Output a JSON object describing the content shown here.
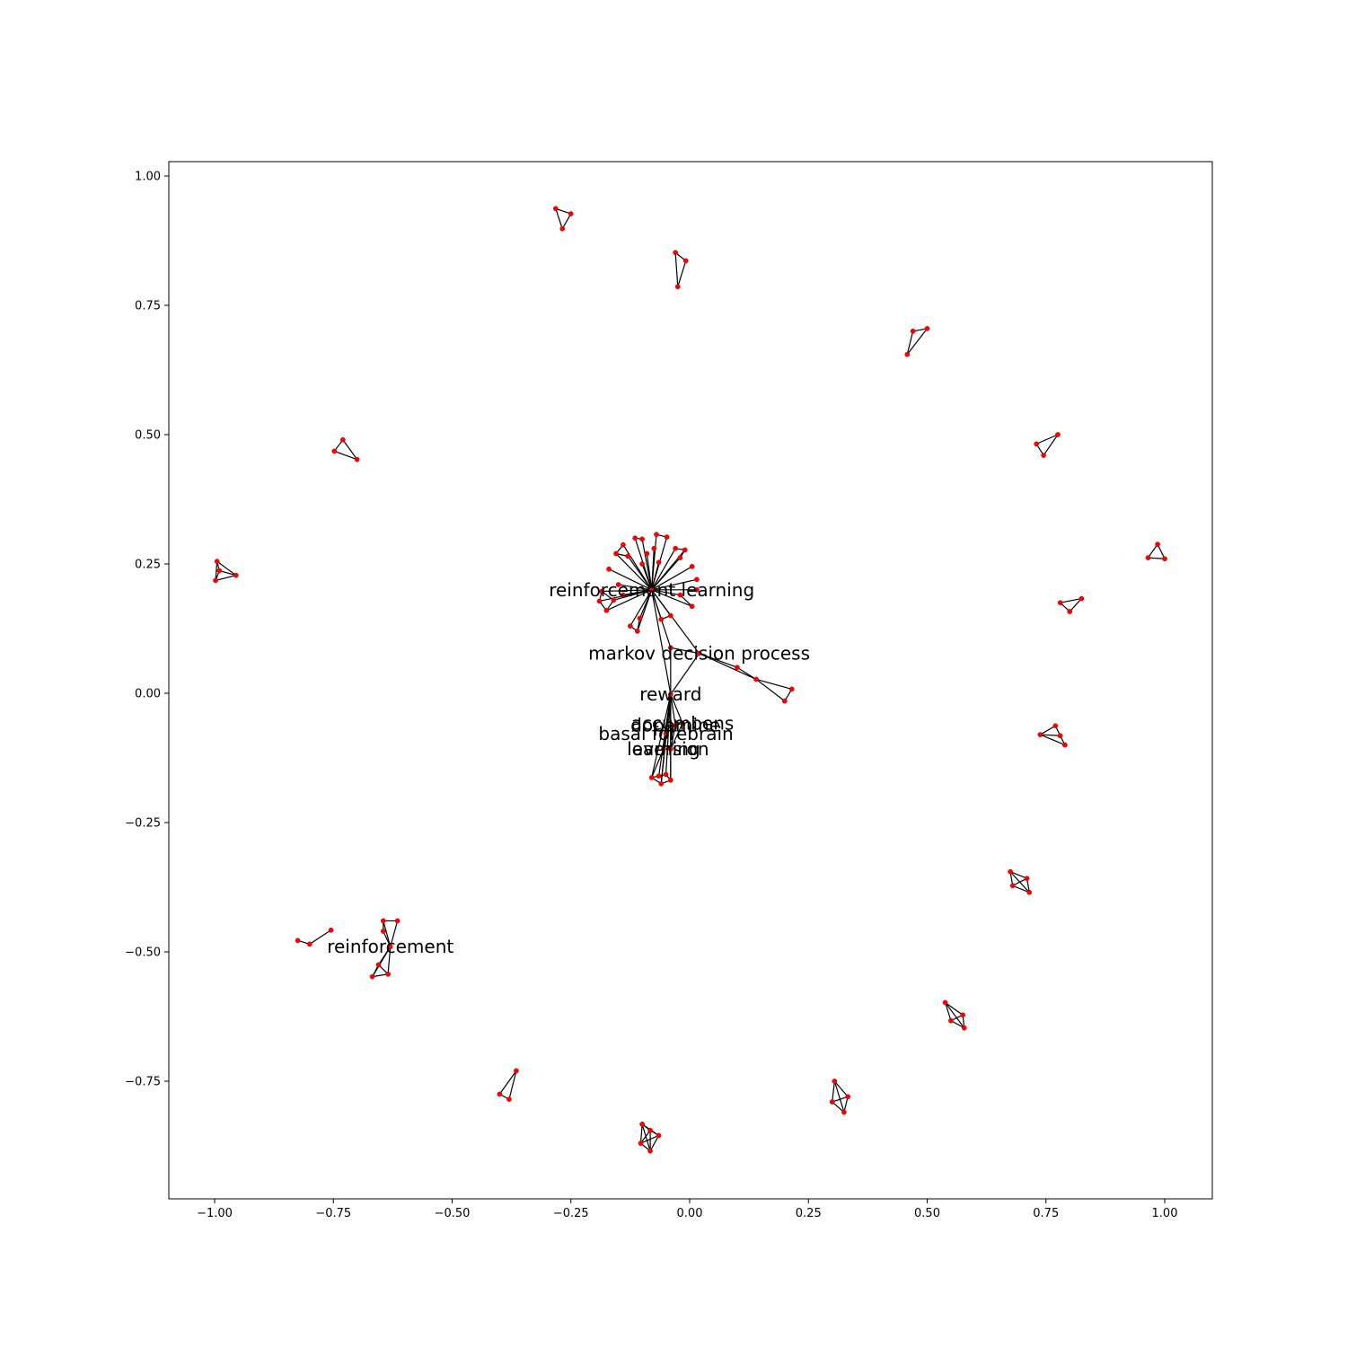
{
  "chart_data": {
    "type": "network",
    "title": "",
    "xlabel": "",
    "ylabel": "",
    "xlim": [
      -1.1,
      1.1
    ],
    "ylim": [
      -1.1,
      1.03
    ],
    "grid": false,
    "x_ticks": [
      "−1.00",
      "−0.75",
      "−0.50",
      "−0.25",
      "0.00",
      "0.25",
      "0.50",
      "0.75",
      "1.00"
    ],
    "x_tick_values": [
      -1.0,
      -0.75,
      -0.5,
      -0.25,
      0.0,
      0.25,
      0.5,
      0.75,
      1.0
    ],
    "y_ticks": [
      "1.00",
      "0.75",
      "0.50",
      "0.25",
      "0.00",
      "−0.25",
      "−0.50",
      "−0.75"
    ],
    "y_tick_values": [
      1.0,
      0.75,
      0.5,
      0.25,
      0.0,
      -0.25,
      -0.5,
      -0.75
    ],
    "node_color": "#ff0000",
    "edge_color": "#000000",
    "labels": [
      {
        "text": "reinforcement learning",
        "x": -0.08,
        "y": 0.2
      },
      {
        "text": "markov decision process",
        "x": 0.02,
        "y": 0.077
      },
      {
        "text": "reward",
        "x": -0.04,
        "y": -0.002
      },
      {
        "text": "accumbens",
        "x": -0.015,
        "y": -0.058
      },
      {
        "text": "dopamine",
        "x": -0.03,
        "y": -0.062
      },
      {
        "text": "basal forebrain",
        "x": -0.05,
        "y": -0.078
      },
      {
        "text": "learning",
        "x": -0.055,
        "y": -0.108
      },
      {
        "text": "aversion",
        "x": -0.04,
        "y": -0.108
      },
      {
        "text": "reinforcement",
        "x": -0.63,
        "y": -0.49
      }
    ],
    "nodes": [
      {
        "id": "rl",
        "x": -0.08,
        "y": 0.2
      },
      {
        "id": "rl1",
        "x": -0.115,
        "y": 0.3
      },
      {
        "id": "rl2",
        "x": -0.1,
        "y": 0.298
      },
      {
        "id": "rl3",
        "x": -0.07,
        "y": 0.307
      },
      {
        "id": "rl4",
        "x": -0.048,
        "y": 0.302
      },
      {
        "id": "rl5",
        "x": -0.075,
        "y": 0.28
      },
      {
        "id": "rl6",
        "x": -0.09,
        "y": 0.27
      },
      {
        "id": "rl7",
        "x": -0.03,
        "y": 0.28
      },
      {
        "id": "rl8",
        "x": -0.01,
        "y": 0.277
      },
      {
        "id": "rl9",
        "x": -0.02,
        "y": 0.262
      },
      {
        "id": "rl10",
        "x": -0.14,
        "y": 0.287
      },
      {
        "id": "rl11",
        "x": -0.155,
        "y": 0.27
      },
      {
        "id": "rl12",
        "x": -0.13,
        "y": 0.265
      },
      {
        "id": "rl13",
        "x": -0.1,
        "y": 0.25
      },
      {
        "id": "rl14",
        "x": -0.065,
        "y": 0.253
      },
      {
        "id": "rl15",
        "x": -0.17,
        "y": 0.24
      },
      {
        "id": "rl16",
        "x": 0.005,
        "y": 0.245
      },
      {
        "id": "rl17",
        "x": 0.015,
        "y": 0.22
      },
      {
        "id": "rl18",
        "x": -0.15,
        "y": 0.21
      },
      {
        "id": "rl19",
        "x": -0.185,
        "y": 0.197
      },
      {
        "id": "rl20",
        "x": -0.19,
        "y": 0.178
      },
      {
        "id": "rl21",
        "x": -0.175,
        "y": 0.16
      },
      {
        "id": "rl22",
        "x": -0.16,
        "y": 0.18
      },
      {
        "id": "rl23",
        "x": -0.14,
        "y": 0.19
      },
      {
        "id": "rl24",
        "x": -0.02,
        "y": 0.19
      },
      {
        "id": "rl25",
        "x": 0.005,
        "y": 0.168
      },
      {
        "id": "rl26",
        "x": 0.015,
        "y": 0.2
      },
      {
        "id": "rl27",
        "x": -0.125,
        "y": 0.13
      },
      {
        "id": "rl28",
        "x": -0.11,
        "y": 0.12
      },
      {
        "id": "rl29",
        "x": -0.105,
        "y": 0.145
      },
      {
        "id": "rl30",
        "x": -0.06,
        "y": 0.143
      },
      {
        "id": "rl31",
        "x": -0.04,
        "y": 0.15
      },
      {
        "id": "mdp",
        "x": 0.02,
        "y": 0.077
      },
      {
        "id": "m1",
        "x": -0.04,
        "y": 0.088
      },
      {
        "id": "m2",
        "x": 0.1,
        "y": 0.05
      },
      {
        "id": "m3",
        "x": 0.14,
        "y": 0.027
      },
      {
        "id": "m4",
        "x": 0.215,
        "y": 0.008
      },
      {
        "id": "m5",
        "x": 0.2,
        "y": -0.015
      },
      {
        "id": "rw",
        "x": -0.04,
        "y": -0.002
      },
      {
        "id": "ac",
        "x": -0.015,
        "y": -0.058
      },
      {
        "id": "dp",
        "x": -0.03,
        "y": -0.062
      },
      {
        "id": "bf",
        "x": -0.05,
        "y": -0.078
      },
      {
        "id": "ln",
        "x": -0.055,
        "y": -0.108
      },
      {
        "id": "av",
        "x": -0.04,
        "y": -0.108
      },
      {
        "id": "b1",
        "x": -0.08,
        "y": -0.163
      },
      {
        "id": "b2",
        "x": -0.06,
        "y": -0.175
      },
      {
        "id": "b3",
        "x": -0.04,
        "y": -0.168
      },
      {
        "id": "b4",
        "x": -0.065,
        "y": -0.16
      },
      {
        "id": "b5",
        "x": -0.05,
        "y": -0.157
      },
      {
        "id": "t1a",
        "x": -0.282,
        "y": 0.937
      },
      {
        "id": "t1b",
        "x": -0.25,
        "y": 0.927
      },
      {
        "id": "t1c",
        "x": -0.268,
        "y": 0.898
      },
      {
        "id": "t2a",
        "x": -0.03,
        "y": 0.852
      },
      {
        "id": "t2b",
        "x": -0.008,
        "y": 0.836
      },
      {
        "id": "t2c",
        "x": -0.025,
        "y": 0.786
      },
      {
        "id": "t3a",
        "x": 0.47,
        "y": 0.7
      },
      {
        "id": "t3b",
        "x": 0.5,
        "y": 0.705
      },
      {
        "id": "t3c",
        "x": 0.458,
        "y": 0.655
      },
      {
        "id": "t4a",
        "x": -0.73,
        "y": 0.49
      },
      {
        "id": "t4b",
        "x": -0.748,
        "y": 0.468
      },
      {
        "id": "t4c",
        "x": -0.7,
        "y": 0.452
      },
      {
        "id": "t5a",
        "x": -0.995,
        "y": 0.255
      },
      {
        "id": "t5b",
        "x": -0.99,
        "y": 0.237
      },
      {
        "id": "t5c",
        "x": -0.955,
        "y": 0.228
      },
      {
        "id": "t5d",
        "x": -0.998,
        "y": 0.218
      },
      {
        "id": "t6a",
        "x": 0.73,
        "y": 0.482
      },
      {
        "id": "t6b",
        "x": 0.775,
        "y": 0.5
      },
      {
        "id": "t6c",
        "x": 0.745,
        "y": 0.46
      },
      {
        "id": "t7a",
        "x": 0.965,
        "y": 0.262
      },
      {
        "id": "t7b",
        "x": 0.985,
        "y": 0.288
      },
      {
        "id": "t7c",
        "x": 1.0,
        "y": 0.26
      },
      {
        "id": "t8a",
        "x": 0.78,
        "y": 0.175
      },
      {
        "id": "t8b",
        "x": 0.825,
        "y": 0.183
      },
      {
        "id": "t8c",
        "x": 0.8,
        "y": 0.158
      },
      {
        "id": "t9a",
        "x": 0.738,
        "y": -0.08
      },
      {
        "id": "t9b",
        "x": 0.77,
        "y": -0.063
      },
      {
        "id": "t9c",
        "x": 0.78,
        "y": -0.082
      },
      {
        "id": "t9d",
        "x": 0.79,
        "y": -0.1
      },
      {
        "id": "q1a",
        "x": 0.675,
        "y": -0.345
      },
      {
        "id": "q1b",
        "x": 0.68,
        "y": -0.372
      },
      {
        "id": "q1c",
        "x": 0.71,
        "y": -0.358
      },
      {
        "id": "q1d",
        "x": 0.715,
        "y": -0.385
      },
      {
        "id": "q2a",
        "x": 0.538,
        "y": -0.598
      },
      {
        "id": "q2b",
        "x": 0.55,
        "y": -0.633
      },
      {
        "id": "q2c",
        "x": 0.575,
        "y": -0.622
      },
      {
        "id": "q2d",
        "x": 0.578,
        "y": -0.647
      },
      {
        "id": "q3a",
        "x": 0.305,
        "y": -0.75
      },
      {
        "id": "q3b",
        "x": 0.3,
        "y": -0.79
      },
      {
        "id": "q3c",
        "x": 0.333,
        "y": -0.78
      },
      {
        "id": "q3d",
        "x": 0.325,
        "y": -0.81
      },
      {
        "id": "q4a",
        "x": -0.1,
        "y": -0.833
      },
      {
        "id": "q4b",
        "x": -0.083,
        "y": -0.845
      },
      {
        "id": "q4c",
        "x": -0.065,
        "y": -0.855
      },
      {
        "id": "q4d",
        "x": -0.103,
        "y": -0.87
      },
      {
        "id": "q4e",
        "x": -0.083,
        "y": -0.885
      },
      {
        "id": "t10a",
        "x": -0.365,
        "y": -0.73
      },
      {
        "id": "t10b",
        "x": -0.4,
        "y": -0.775
      },
      {
        "id": "t10c",
        "x": -0.38,
        "y": -0.785
      },
      {
        "id": "r",
        "x": -0.63,
        "y": -0.49
      },
      {
        "id": "r1",
        "x": -0.645,
        "y": -0.44
      },
      {
        "id": "r2",
        "x": -0.615,
        "y": -0.44
      },
      {
        "id": "r3",
        "x": -0.645,
        "y": -0.46
      },
      {
        "id": "r4",
        "x": -0.655,
        "y": -0.525
      },
      {
        "id": "r5",
        "x": -0.668,
        "y": -0.548
      },
      {
        "id": "r6",
        "x": -0.635,
        "y": -0.543
      },
      {
        "id": "s1",
        "x": -0.825,
        "y": -0.478
      },
      {
        "id": "s2",
        "x": -0.8,
        "y": -0.485
      },
      {
        "id": "s3",
        "x": -0.755,
        "y": -0.458
      }
    ],
    "edges": [
      [
        "rl",
        "rl1"
      ],
      [
        "rl",
        "rl2"
      ],
      [
        "rl",
        "rl3"
      ],
      [
        "rl",
        "rl4"
      ],
      [
        "rl",
        "rl5"
      ],
      [
        "rl",
        "rl6"
      ],
      [
        "rl",
        "rl7"
      ],
      [
        "rl",
        "rl8"
      ],
      [
        "rl",
        "rl9"
      ],
      [
        "rl",
        "rl10"
      ],
      [
        "rl",
        "rl11"
      ],
      [
        "rl",
        "rl12"
      ],
      [
        "rl",
        "rl13"
      ],
      [
        "rl",
        "rl14"
      ],
      [
        "rl",
        "rl15"
      ],
      [
        "rl",
        "rl16"
      ],
      [
        "rl",
        "rl17"
      ],
      [
        "rl",
        "rl18"
      ],
      [
        "rl",
        "rl19"
      ],
      [
        "rl",
        "rl20"
      ],
      [
        "rl",
        "rl21"
      ],
      [
        "rl",
        "rl22"
      ],
      [
        "rl",
        "rl23"
      ],
      [
        "rl",
        "rl24"
      ],
      [
        "rl",
        "rl25"
      ],
      [
        "rl",
        "rl26"
      ],
      [
        "rl",
        "rl27"
      ],
      [
        "rl",
        "rl28"
      ],
      [
        "rl",
        "rl29"
      ],
      [
        "rl",
        "rl30"
      ],
      [
        "rl",
        "rl31"
      ],
      [
        "rl1",
        "rl2"
      ],
      [
        "rl3",
        "rl4"
      ],
      [
        "rl7",
        "rl8"
      ],
      [
        "rl8",
        "rl9"
      ],
      [
        "rl10",
        "rl11"
      ],
      [
        "rl11",
        "rl12"
      ],
      [
        "rl19",
        "rl20"
      ],
      [
        "rl20",
        "rl21"
      ],
      [
        "rl21",
        "rl22"
      ],
      [
        "rl19",
        "rl22"
      ],
      [
        "rl27",
        "rl28"
      ],
      [
        "rl28",
        "rl29"
      ],
      [
        "rl30",
        "rl31"
      ],
      [
        "rl24",
        "rl25"
      ],
      [
        "rl",
        "mdp"
      ],
      [
        "rl",
        "m1"
      ],
      [
        "rl",
        "rw"
      ],
      [
        "mdp",
        "m1"
      ],
      [
        "mdp",
        "m2"
      ],
      [
        "m2",
        "m3"
      ],
      [
        "mdp",
        "m3"
      ],
      [
        "m3",
        "m4"
      ],
      [
        "m4",
        "m5"
      ],
      [
        "m3",
        "m5"
      ],
      [
        "mdp",
        "rw"
      ],
      [
        "m1",
        "rw"
      ],
      [
        "rw",
        "ac"
      ],
      [
        "rw",
        "dp"
      ],
      [
        "rw",
        "bf"
      ],
      [
        "rw",
        "ln"
      ],
      [
        "rw",
        "av"
      ],
      [
        "rw",
        "b1"
      ],
      [
        "rw",
        "b2"
      ],
      [
        "rw",
        "b3"
      ],
      [
        "rw",
        "b4"
      ],
      [
        "rw",
        "b5"
      ],
      [
        "ac",
        "dp"
      ],
      [
        "dp",
        "bf"
      ],
      [
        "bf",
        "ln"
      ],
      [
        "ln",
        "av"
      ],
      [
        "av",
        "b3"
      ],
      [
        "ln",
        "b1"
      ],
      [
        "b1",
        "b2"
      ],
      [
        "b2",
        "b3"
      ],
      [
        "b1",
        "b4"
      ],
      [
        "b4",
        "b5"
      ],
      [
        "b5",
        "b3"
      ],
      [
        "ac",
        "av"
      ],
      [
        "dp",
        "av"
      ],
      [
        "bf",
        "b2"
      ],
      [
        "t1a",
        "t1b"
      ],
      [
        "t1b",
        "t1c"
      ],
      [
        "t1c",
        "t1a"
      ],
      [
        "t2a",
        "t2b"
      ],
      [
        "t2b",
        "t2c"
      ],
      [
        "t2c",
        "t2a"
      ],
      [
        "t3a",
        "t3b"
      ],
      [
        "t3b",
        "t3c"
      ],
      [
        "t3c",
        "t3a"
      ],
      [
        "t4a",
        "t4b"
      ],
      [
        "t4a",
        "t4c"
      ],
      [
        "t4b",
        "t4c"
      ],
      [
        "t5a",
        "t5b"
      ],
      [
        "t5a",
        "t5c"
      ],
      [
        "t5b",
        "t5c"
      ],
      [
        "t5c",
        "t5d"
      ],
      [
        "t5b",
        "t5d"
      ],
      [
        "t5a",
        "t5d"
      ],
      [
        "t6a",
        "t6b"
      ],
      [
        "t6b",
        "t6c"
      ],
      [
        "t6c",
        "t6a"
      ],
      [
        "t7a",
        "t7b"
      ],
      [
        "t7b",
        "t7c"
      ],
      [
        "t7c",
        "t7a"
      ],
      [
        "t8a",
        "t8b"
      ],
      [
        "t8b",
        "t8c"
      ],
      [
        "t8c",
        "t8a"
      ],
      [
        "t9a",
        "t9b"
      ],
      [
        "t9b",
        "t9c"
      ],
      [
        "t9c",
        "t9d"
      ],
      [
        "t9a",
        "t9d"
      ],
      [
        "t9a",
        "t9c"
      ],
      [
        "q1a",
        "q1b"
      ],
      [
        "q1a",
        "q1c"
      ],
      [
        "q1a",
        "q1d"
      ],
      [
        "q1b",
        "q1c"
      ],
      [
        "q1b",
        "q1d"
      ],
      [
        "q1c",
        "q1d"
      ],
      [
        "q2a",
        "q2b"
      ],
      [
        "q2a",
        "q2c"
      ],
      [
        "q2a",
        "q2d"
      ],
      [
        "q2b",
        "q2c"
      ],
      [
        "q2b",
        "q2d"
      ],
      [
        "q2c",
        "q2d"
      ],
      [
        "q3a",
        "q3b"
      ],
      [
        "q3a",
        "q3c"
      ],
      [
        "q3a",
        "q3d"
      ],
      [
        "q3b",
        "q3c"
      ],
      [
        "q3b",
        "q3d"
      ],
      [
        "q3c",
        "q3d"
      ],
      [
        "q4a",
        "q4b"
      ],
      [
        "q4a",
        "q4c"
      ],
      [
        "q4a",
        "q4d"
      ],
      [
        "q4a",
        "q4e"
      ],
      [
        "q4b",
        "q4c"
      ],
      [
        "q4b",
        "q4d"
      ],
      [
        "q4b",
        "q4e"
      ],
      [
        "q4c",
        "q4d"
      ],
      [
        "q4c",
        "q4e"
      ],
      [
        "q4d",
        "q4e"
      ],
      [
        "t10a",
        "t10b"
      ],
      [
        "t10a",
        "t10c"
      ],
      [
        "t10b",
        "t10c"
      ],
      [
        "r",
        "r1"
      ],
      [
        "r",
        "r2"
      ],
      [
        "r",
        "r3"
      ],
      [
        "r1",
        "r2"
      ],
      [
        "r1",
        "r3"
      ],
      [
        "r",
        "r4"
      ],
      [
        "r",
        "r5"
      ],
      [
        "r",
        "r6"
      ],
      [
        "r4",
        "r5"
      ],
      [
        "r5",
        "r6"
      ],
      [
        "r4",
        "r6"
      ],
      [
        "s1",
        "s2"
      ],
      [
        "s2",
        "s3"
      ]
    ]
  }
}
